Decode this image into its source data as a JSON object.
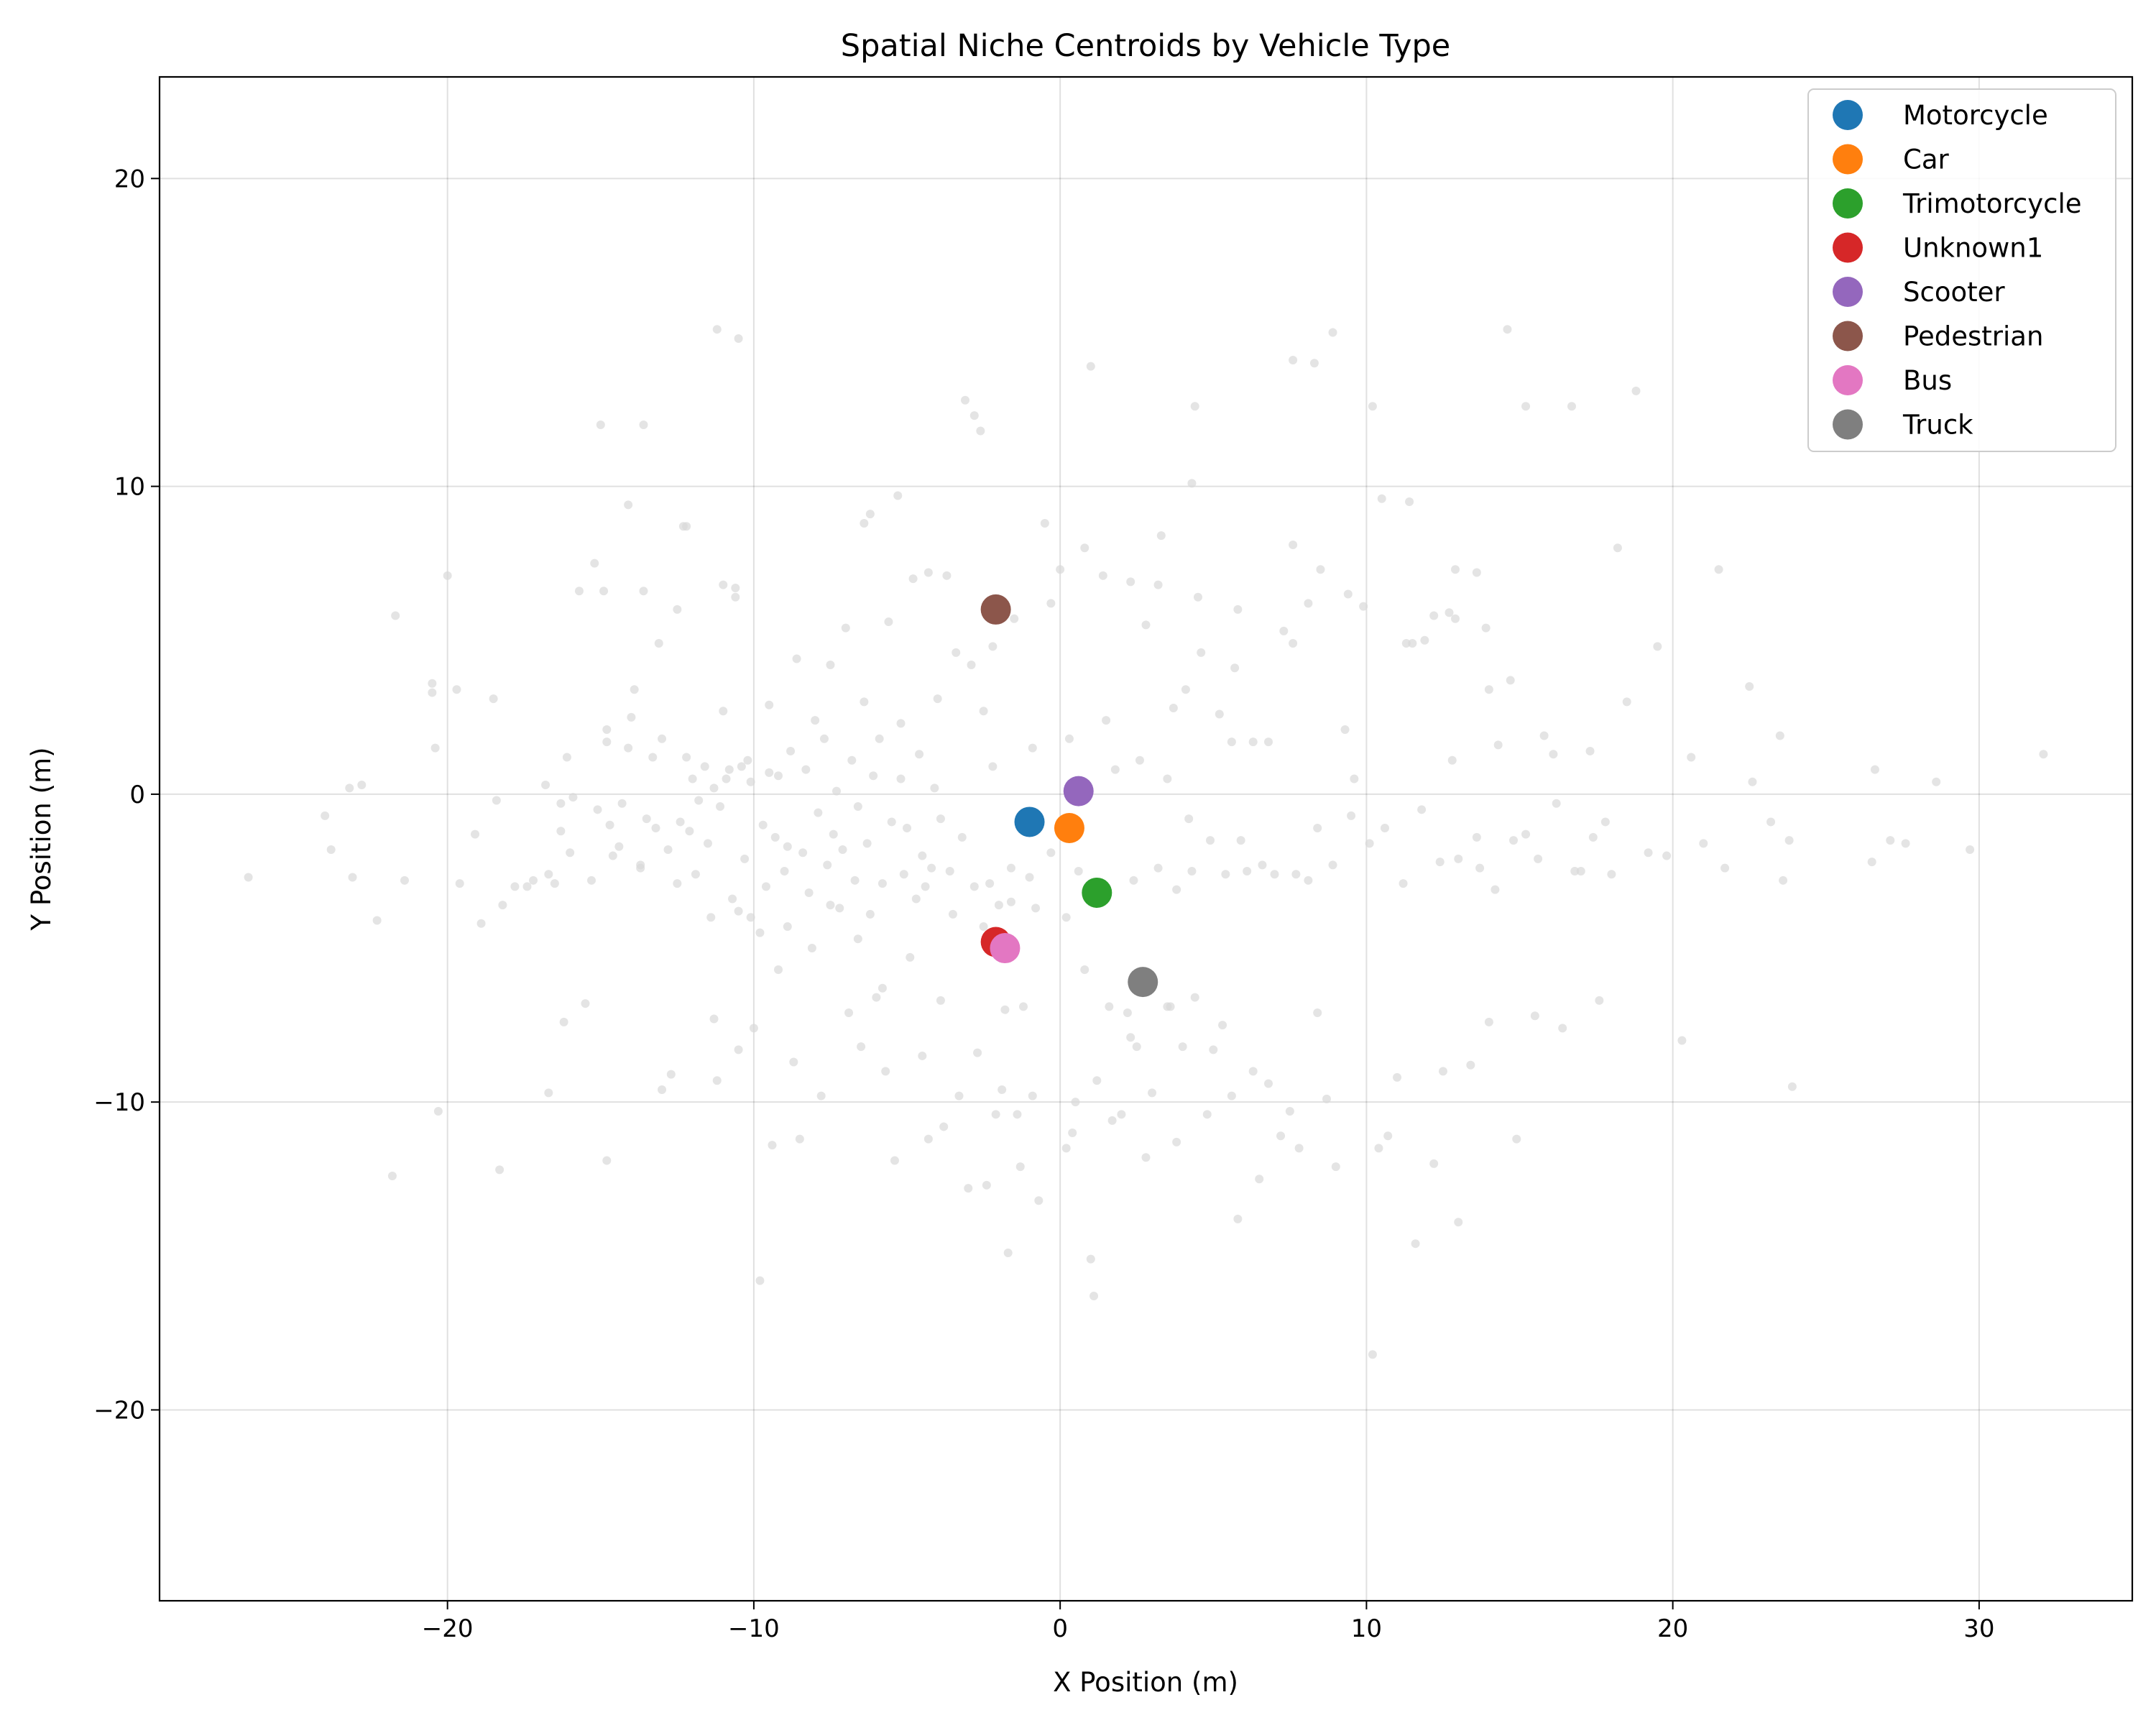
{
  "chart_data": {
    "type": "scatter",
    "title": "Spatial Niche Centroids by Vehicle Type",
    "xlabel": "X Position (m)",
    "ylabel": "Y Position (m)",
    "xlim": [
      -29.4,
      35
    ],
    "ylim": [
      -26.2,
      23.3
    ],
    "xticks": [
      -20,
      -10,
      0,
      10,
      20,
      30
    ],
    "yticks": [
      -20,
      -10,
      0,
      10,
      20
    ],
    "xtick_labels": [
      "−20",
      "−10",
      "0",
      "10",
      "20",
      "30"
    ],
    "ytick_labels": [
      "−20",
      "−10",
      "0",
      "10",
      "20"
    ],
    "grid": true,
    "legend_position": "top-right",
    "background_color": "#d9d9d9",
    "background_points": [
      [
        -26.5,
        -2.7
      ],
      [
        -24.0,
        -0.7
      ],
      [
        -23.8,
        -1.8
      ],
      [
        -23.2,
        0.2
      ],
      [
        -22.8,
        0.3
      ],
      [
        -23.1,
        -2.7
      ],
      [
        -22.3,
        -4.1
      ],
      [
        -21.8,
        -12.4
      ],
      [
        -21.7,
        5.8
      ],
      [
        -21.4,
        -2.8
      ],
      [
        -20.5,
        3.6
      ],
      [
        -20.5,
        3.3
      ],
      [
        -20.4,
        1.5
      ],
      [
        -20.3,
        -10.3
      ],
      [
        -20.0,
        7.1
      ],
      [
        -19.7,
        3.4
      ],
      [
        -19.6,
        -2.9
      ],
      [
        -19.1,
        -1.3
      ],
      [
        -18.9,
        -4.2
      ],
      [
        -18.5,
        3.1
      ],
      [
        -18.4,
        -0.2
      ],
      [
        -18.3,
        -12.2
      ],
      [
        -18.2,
        -3.6
      ],
      [
        -17.8,
        -3.0
      ],
      [
        -17.4,
        -3.0
      ],
      [
        -16.8,
        0.3
      ],
      [
        -16.7,
        -2.6
      ],
      [
        -16.7,
        -9.7
      ],
      [
        -16.5,
        -2.9
      ],
      [
        -16.3,
        -1.2
      ],
      [
        -16.3,
        -0.3
      ],
      [
        -16.2,
        -7.4
      ],
      [
        -16.1,
        1.2
      ],
      [
        -15.9,
        -0.1
      ],
      [
        -15.7,
        6.6
      ],
      [
        -15.5,
        -6.8
      ],
      [
        -15.3,
        -2.8
      ],
      [
        -15.2,
        7.5
      ],
      [
        -15.1,
        -0.5
      ],
      [
        -14.9,
        6.6
      ],
      [
        -14.8,
        2.1
      ],
      [
        -14.8,
        1.7
      ],
      [
        -14.8,
        -11.9
      ],
      [
        -14.6,
        -2.0
      ],
      [
        -14.4,
        -1.7
      ],
      [
        -14.3,
        -0.3
      ],
      [
        -14.1,
        1.5
      ],
      [
        -14.0,
        2.5
      ],
      [
        -13.9,
        3.4
      ],
      [
        -13.7,
        -2.3
      ],
      [
        -13.6,
        12.0
      ],
      [
        -13.5,
        -0.8
      ],
      [
        -13.3,
        1.2
      ],
      [
        -13.1,
        4.9
      ],
      [
        -13.0,
        -9.6
      ],
      [
        -13.0,
        1.8
      ],
      [
        -12.8,
        -1.8
      ],
      [
        -12.7,
        -9.1
      ],
      [
        -12.5,
        6.0
      ],
      [
        -12.4,
        -0.9
      ],
      [
        -12.2,
        8.7
      ],
      [
        -12.1,
        -1.2
      ],
      [
        -12.0,
        0.5
      ],
      [
        -11.9,
        -2.6
      ],
      [
        -11.8,
        -0.2
      ],
      [
        -11.5,
        -1.6
      ],
      [
        -11.3,
        0.2
      ],
      [
        -11.3,
        -7.3
      ],
      [
        -11.2,
        -9.3
      ],
      [
        -11.1,
        -0.4
      ],
      [
        -11.0,
        2.7
      ],
      [
        -10.8,
        0.8
      ],
      [
        -10.7,
        -3.4
      ],
      [
        -10.6,
        6.4
      ],
      [
        -10.5,
        -8.3
      ],
      [
        -10.4,
        0.9
      ],
      [
        -10.3,
        -2.1
      ],
      [
        -10.2,
        1.1
      ],
      [
        -10.1,
        -4.0
      ],
      [
        -10.0,
        -7.6
      ],
      [
        -9.8,
        -15.8
      ],
      [
        -9.7,
        -1.0
      ],
      [
        -9.6,
        -3.0
      ],
      [
        -9.5,
        2.9
      ],
      [
        -9.4,
        -11.4
      ],
      [
        -9.3,
        -1.4
      ],
      [
        -9.2,
        0.6
      ],
      [
        -9.0,
        -2.5
      ],
      [
        -8.9,
        -4.3
      ],
      [
        -8.8,
        1.4
      ],
      [
        -8.7,
        -8.7
      ],
      [
        -8.6,
        4.4
      ],
      [
        -8.5,
        -11.2
      ],
      [
        -8.4,
        -1.9
      ],
      [
        -8.3,
        0.8
      ],
      [
        -8.2,
        -3.2
      ],
      [
        -8.0,
        2.4
      ],
      [
        -7.9,
        -0.6
      ],
      [
        -7.8,
        -9.8
      ],
      [
        -7.7,
        1.8
      ],
      [
        -7.6,
        -2.3
      ],
      [
        -7.5,
        4.2
      ],
      [
        -7.4,
        -1.3
      ],
      [
        -7.3,
        0.1
      ],
      [
        -7.2,
        -3.7
      ],
      [
        -7.1,
        -1.8
      ],
      [
        -7.0,
        5.4
      ],
      [
        -6.9,
        -7.1
      ],
      [
        -6.8,
        1.1
      ],
      [
        -6.7,
        -2.8
      ],
      [
        -6.6,
        -0.4
      ],
      [
        -6.5,
        -8.2
      ],
      [
        -6.4,
        3.0
      ],
      [
        -6.3,
        -1.6
      ],
      [
        -6.2,
        -3.9
      ],
      [
        -6.1,
        0.6
      ],
      [
        -6.0,
        -6.6
      ],
      [
        -5.9,
        1.8
      ],
      [
        -5.8,
        -2.9
      ],
      [
        -5.7,
        -9.0
      ],
      [
        -5.6,
        5.6
      ],
      [
        -5.5,
        -0.9
      ],
      [
        -5.4,
        -11.9
      ],
      [
        -5.3,
        9.7
      ],
      [
        -5.2,
        2.3
      ],
      [
        -5.1,
        -2.6
      ],
      [
        -5.0,
        -1.1
      ],
      [
        -4.9,
        -5.3
      ],
      [
        -4.8,
        7.0
      ],
      [
        -4.7,
        -3.4
      ],
      [
        -4.6,
        1.3
      ],
      [
        -4.5,
        -8.5
      ],
      [
        -4.4,
        -3.0
      ],
      [
        -4.3,
        -11.2
      ],
      [
        -4.2,
        -2.4
      ],
      [
        -4.1,
        0.2
      ],
      [
        -4.0,
        3.1
      ],
      [
        -3.9,
        -6.7
      ],
      [
        -3.8,
        -10.8
      ],
      [
        -3.7,
        7.1
      ],
      [
        -3.6,
        -2.5
      ],
      [
        -3.5,
        -3.9
      ],
      [
        -3.4,
        4.6
      ],
      [
        -3.3,
        -9.8
      ],
      [
        -3.2,
        -1.4
      ],
      [
        -3.1,
        12.8
      ],
      [
        -3.0,
        -12.8
      ],
      [
        -2.9,
        4.2
      ],
      [
        -2.8,
        -3.0
      ],
      [
        -2.7,
        -8.4
      ],
      [
        -2.6,
        11.8
      ],
      [
        -2.5,
        2.7
      ],
      [
        -2.4,
        -12.7
      ],
      [
        -2.3,
        -2.9
      ],
      [
        -2.2,
        4.8
      ],
      [
        -2.1,
        -10.4
      ],
      [
        -2.0,
        -3.6
      ],
      [
        -1.9,
        -9.6
      ],
      [
        -1.8,
        -7.0
      ],
      [
        -1.7,
        -14.9
      ],
      [
        -1.6,
        -2.4
      ],
      [
        -1.5,
        5.7
      ],
      [
        -1.4,
        -10.4
      ],
      [
        -1.3,
        -12.1
      ],
      [
        -1.2,
        -6.9
      ],
      [
        -0.9,
        -9.8
      ],
      [
        -0.7,
        -13.2
      ],
      [
        -0.5,
        8.8
      ],
      [
        -0.3,
        6.2
      ],
      [
        0.0,
        7.3
      ],
      [
        0.2,
        -11.5
      ],
      [
        0.4,
        -11.0
      ],
      [
        0.5,
        -10.0
      ],
      [
        0.8,
        8.0
      ],
      [
        1.0,
        -15.1
      ],
      [
        1.1,
        -16.3
      ],
      [
        1.2,
        -9.3
      ],
      [
        1.4,
        7.1
      ],
      [
        1.7,
        -10.6
      ],
      [
        2.0,
        -10.4
      ],
      [
        2.3,
        -7.9
      ],
      [
        2.5,
        -8.2
      ],
      [
        2.8,
        -11.8
      ],
      [
        3.0,
        -9.7
      ],
      [
        3.3,
        8.4
      ],
      [
        3.5,
        -6.9
      ],
      [
        3.8,
        -11.3
      ],
      [
        4.0,
        -8.2
      ],
      [
        4.3,
        -2.5
      ],
      [
        4.5,
        6.4
      ],
      [
        4.8,
        -10.4
      ],
      [
        5.0,
        -8.3
      ],
      [
        5.3,
        -7.5
      ],
      [
        5.6,
        -9.8
      ],
      [
        5.8,
        -13.8
      ],
      [
        6.1,
        -2.5
      ],
      [
        6.3,
        -9.0
      ],
      [
        6.5,
        -12.5
      ],
      [
        6.8,
        -9.4
      ],
      [
        7.2,
        -11.1
      ],
      [
        7.5,
        -10.3
      ],
      [
        7.8,
        -11.5
      ],
      [
        8.1,
        -2.8
      ],
      [
        8.4,
        -7.1
      ],
      [
        8.7,
        -9.9
      ],
      [
        9.0,
        -12.1
      ],
      [
        9.3,
        2.1
      ],
      [
        9.6,
        0.5
      ],
      [
        9.9,
        6.1
      ],
      [
        10.2,
        -18.2
      ],
      [
        10.4,
        -11.5
      ],
      [
        10.7,
        -11.1
      ],
      [
        11.0,
        -9.2
      ],
      [
        11.3,
        4.9
      ],
      [
        11.6,
        -14.6
      ],
      [
        11.9,
        5.0
      ],
      [
        12.2,
        -12.0
      ],
      [
        12.5,
        -9.0
      ],
      [
        12.8,
        1.1
      ],
      [
        13.0,
        -13.9
      ],
      [
        13.4,
        -8.8
      ],
      [
        13.7,
        -2.4
      ],
      [
        14.0,
        -7.4
      ],
      [
        14.3,
        1.6
      ],
      [
        14.6,
        15.1
      ],
      [
        14.9,
        -11.2
      ],
      [
        15.2,
        12.6
      ],
      [
        15.5,
        -7.2
      ],
      [
        15.8,
        1.9
      ],
      [
        16.1,
        1.3
      ],
      [
        16.4,
        -7.6
      ],
      [
        16.7,
        12.6
      ],
      [
        17.0,
        -2.5
      ],
      [
        17.3,
        1.4
      ],
      [
        17.6,
        -6.7
      ],
      [
        18.0,
        -2.6
      ],
      [
        18.2,
        8.0
      ],
      [
        18.5,
        3.0
      ],
      [
        18.8,
        13.1
      ],
      [
        19.2,
        -1.9
      ],
      [
        19.5,
        4.8
      ],
      [
        19.8,
        -2.0
      ],
      [
        20.3,
        -8.0
      ],
      [
        20.6,
        1.2
      ],
      [
        21.0,
        -1.6
      ],
      [
        21.5,
        7.3
      ],
      [
        21.7,
        -2.4
      ],
      [
        22.5,
        3.5
      ],
      [
        22.6,
        0.4
      ],
      [
        23.2,
        -0.9
      ],
      [
        23.5,
        1.9
      ],
      [
        23.6,
        -2.8
      ],
      [
        23.8,
        -1.5
      ],
      [
        23.9,
        -9.5
      ],
      [
        26.5,
        -2.2
      ],
      [
        26.6,
        0.8
      ],
      [
        27.1,
        -1.5
      ],
      [
        27.6,
        -1.6
      ],
      [
        28.6,
        0.4
      ],
      [
        29.7,
        -1.8
      ],
      [
        32.1,
        1.3
      ],
      [
        -11.2,
        15.1
      ],
      [
        -10.5,
        14.8
      ],
      [
        -15.0,
        12.0
      ],
      [
        -14.1,
        9.4
      ],
      [
        -12.3,
        8.7
      ],
      [
        -13.6,
        6.6
      ],
      [
        -11.0,
        6.8
      ],
      [
        -10.6,
        6.7
      ],
      [
        -6.4,
        8.8
      ],
      [
        -6.2,
        9.1
      ],
      [
        -4.3,
        7.2
      ],
      [
        -2.8,
        12.3
      ],
      [
        7.6,
        14.1
      ],
      [
        8.3,
        14.0
      ],
      [
        8.9,
        15.0
      ],
      [
        10.2,
        12.6
      ],
      [
        10.5,
        9.6
      ],
      [
        11.4,
        9.5
      ],
      [
        4.4,
        12.6
      ],
      [
        4.3,
        10.1
      ],
      [
        1.0,
        13.9
      ],
      [
        7.6,
        8.1
      ],
      [
        9.4,
        6.5
      ],
      [
        8.1,
        6.2
      ],
      [
        8.5,
        7.3
      ],
      [
        12.9,
        7.3
      ],
      [
        13.6,
        7.2
      ],
      [
        13.9,
        5.4
      ],
      [
        12.7,
        5.9
      ],
      [
        12.2,
        5.8
      ],
      [
        12.9,
        5.7
      ],
      [
        11.5,
        4.9
      ],
      [
        14.7,
        3.7
      ],
      [
        14.0,
        3.4
      ],
      [
        7.3,
        5.3
      ],
      [
        7.6,
        4.9
      ],
      [
        6.3,
        1.7
      ],
      [
        6.8,
        1.7
      ],
      [
        5.6,
        1.7
      ],
      [
        4.6,
        4.6
      ],
      [
        4.1,
        3.4
      ],
      [
        3.7,
        2.8
      ],
      [
        5.2,
        2.6
      ],
      [
        5.7,
        4.1
      ],
      [
        5.8,
        6.0
      ],
      [
        3.2,
        6.8
      ],
      [
        2.8,
        5.5
      ],
      [
        2.3,
        6.9
      ],
      [
        6.6,
        -2.3
      ],
      [
        7.0,
        -2.6
      ],
      [
        7.7,
        -2.6
      ],
      [
        8.4,
        -1.1
      ],
      [
        8.9,
        -2.3
      ],
      [
        9.5,
        -0.7
      ],
      [
        10.1,
        -1.6
      ],
      [
        10.6,
        -1.1
      ],
      [
        11.2,
        -2.9
      ],
      [
        11.8,
        -0.5
      ],
      [
        12.4,
        -2.2
      ],
      [
        13.0,
        -2.1
      ],
      [
        13.6,
        -1.4
      ],
      [
        14.2,
        -3.1
      ],
      [
        14.8,
        -1.5
      ],
      [
        15.2,
        -1.3
      ],
      [
        15.6,
        -2.1
      ],
      [
        16.2,
        -0.3
      ],
      [
        16.8,
        -2.5
      ],
      [
        17.4,
        -1.4
      ],
      [
        17.8,
        -0.9
      ],
      [
        -8.9,
        -1.7
      ],
      [
        -9.5,
        0.7
      ],
      [
        -10.1,
        0.4
      ],
      [
        -10.9,
        0.5
      ],
      [
        -11.6,
        0.9
      ],
      [
        -12.2,
        1.2
      ],
      [
        -13.2,
        -1.1
      ],
      [
        -14.7,
        -1.0
      ],
      [
        -16.0,
        -1.9
      ],
      [
        -17.2,
        -2.8
      ],
      [
        -9.2,
        -5.7
      ],
      [
        -9.8,
        -4.5
      ],
      [
        -10.5,
        -3.8
      ],
      [
        -11.4,
        -4.0
      ],
      [
        -12.5,
        -2.9
      ],
      [
        -13.7,
        -2.4
      ],
      [
        -5.8,
        -6.3
      ],
      [
        -6.6,
        -4.7
      ],
      [
        -7.5,
        -3.6
      ],
      [
        -8.1,
        -5.0
      ],
      [
        0.8,
        -5.7
      ],
      [
        1.6,
        -6.9
      ],
      [
        2.2,
        -7.1
      ],
      [
        2.9,
        -6.3
      ],
      [
        3.6,
        -6.9
      ],
      [
        4.4,
        -6.6
      ],
      [
        -0.8,
        -3.7
      ],
      [
        0.2,
        -4.0
      ],
      [
        -1.6,
        -3.5
      ],
      [
        -2.5,
        -4.3
      ],
      [
        2.4,
        -2.8
      ],
      [
        3.2,
        -2.4
      ],
      [
        3.8,
        -3.1
      ],
      [
        4.9,
        -1.5
      ],
      [
        5.4,
        -2.6
      ],
      [
        5.9,
        -1.5
      ],
      [
        1.8,
        0.8
      ],
      [
        2.6,
        1.1
      ],
      [
        3.5,
        0.5
      ],
      [
        4.2,
        -0.8
      ],
      [
        -1.0,
        -2.7
      ],
      [
        -0.3,
        -1.9
      ],
      [
        0.6,
        -2.5
      ],
      [
        -3.9,
        -0.8
      ],
      [
        -4.5,
        -2.0
      ],
      [
        -5.2,
        0.5
      ],
      [
        -2.2,
        0.9
      ],
      [
        -0.9,
        1.5
      ],
      [
        0.3,
        1.8
      ],
      [
        1.5,
        2.4
      ]
    ],
    "series": [
      {
        "name": "Motorcycle",
        "color": "#1f77b4",
        "x": [
          -1.0
        ],
        "y": [
          -0.9
        ]
      },
      {
        "name": "Car",
        "color": "#ff7f0e",
        "x": [
          0.3
        ],
        "y": [
          -1.1
        ]
      },
      {
        "name": "Trimotorcycle",
        "color": "#2ca02c",
        "x": [
          1.2
        ],
        "y": [
          -3.2
        ]
      },
      {
        "name": "Unknown1",
        "color": "#d62728",
        "x": [
          -2.1
        ],
        "y": [
          -4.8
        ]
      },
      {
        "name": "Scooter",
        "color": "#9467bd",
        "x": [
          0.6
        ],
        "y": [
          0.1
        ]
      },
      {
        "name": "Pedestrian",
        "color": "#8c564b",
        "x": [
          -2.1
        ],
        "y": [
          6.0
        ]
      },
      {
        "name": "Bus",
        "color": "#e377c2",
        "x": [
          -1.8
        ],
        "y": [
          -5.0
        ]
      },
      {
        "name": "Truck",
        "color": "#7f7f7f",
        "x": [
          2.7
        ],
        "y": [
          -6.1
        ]
      }
    ]
  }
}
